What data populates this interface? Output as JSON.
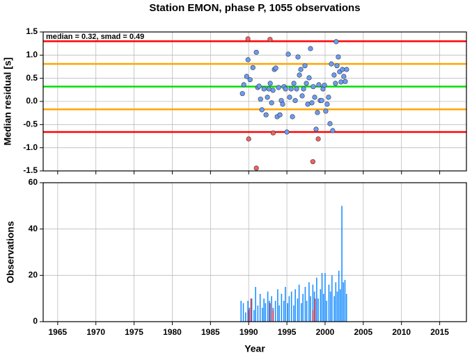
{
  "chart_data": [
    {
      "type": "scatter",
      "title": "Station EMON, phase P, 1055 observations",
      "ylabel": "Median residual [s]",
      "annotation": "median = 0.32, smad = 0.49",
      "xlim": [
        1963.1,
        2018.5
      ],
      "xticks": [
        1965,
        1970,
        1975,
        1980,
        1985,
        1990,
        1995,
        2000,
        2005,
        2010,
        2015
      ],
      "ylim": [
        -1.5,
        1.5
      ],
      "yticks": [
        -1.5,
        {
          "value": -1,
          "label": "-1.0"
        },
        -0.5,
        {
          "value": 0,
          "label": "0.0"
        },
        0.5,
        {
          "value": 1,
          "label": "1.0"
        },
        1.5
      ],
      "grid": true,
      "hlines": [
        {
          "value": 1.3,
          "color": "#ff0000"
        },
        {
          "value": 0.81,
          "color": "#ffa500"
        },
        {
          "value": 0.32,
          "color": "#00e000"
        },
        {
          "value": -0.17,
          "color": "#ffa500"
        },
        {
          "value": -0.66,
          "color": "#ff0000"
        }
      ],
      "series": [
        {
          "color": "#6a9cf5",
          "x": [
            1989.18,
            1989.36,
            1989.73,
            1989.91,
            1990.18,
            1990.55,
            1991.0,
            1991.18,
            1991.36,
            1991.55,
            1991.73,
            1992.0,
            1992.27,
            1992.45,
            1992.64,
            1992.82,
            1993.0,
            1993.18,
            1993.36,
            1993.55,
            1993.73,
            1993.91,
            1994.09,
            1994.27,
            1994.45,
            1994.64,
            1994.82,
            1995.0,
            1995.18,
            1995.36,
            1995.55,
            1995.73,
            1995.91,
            1996.09,
            1996.27,
            1996.45,
            1996.64,
            1996.82,
            1997.0,
            1997.18,
            1997.36,
            1997.55,
            1997.73,
            1997.91,
            1998.09,
            1998.27,
            1998.45,
            1998.64,
            1998.82,
            1999.0,
            1999.18,
            1999.36,
            1999.55,
            1999.73,
            1999.91,
            2000.09,
            2000.27,
            2000.45,
            2000.64,
            2000.82,
            2001.0,
            2001.18,
            2001.36,
            2001.45,
            2001.55,
            2001.73,
            2001.91,
            2002.09,
            2002.27,
            2002.45,
            2002.64,
            2002.82
          ],
          "values": [
            0.17,
            0.36,
            0.54,
            0.9,
            0.47,
            0.73,
            1.06,
            0.3,
            0.33,
            0.05,
            -0.18,
            0.27,
            -0.29,
            0.09,
            0.27,
            0.39,
            -0.03,
            0.24,
            0.69,
            0.72,
            -0.33,
            0.3,
            -0.29,
            0.02,
            -0.06,
            0.32,
            0.27,
            -0.66,
            1.02,
            0.09,
            0.27,
            -0.33,
            0.39,
            0.02,
            0.27,
            0.96,
            0.57,
            0.69,
            0.12,
            0.27,
            0.77,
            0.39,
            -0.06,
            0.51,
            1.14,
            -0.03,
            0.32,
            0.09,
            -0.6,
            -0.24,
            0.36,
            0.02,
            0.02,
            0.27,
            0.35,
            -0.21,
            -0.06,
            0.09,
            -0.48,
            0.81,
            -0.63,
            0.57,
            0.39,
            1.29,
            0.77,
            0.96,
            0.64,
            0.42,
            0.69,
            0.54,
            0.43,
            0.69
          ]
        },
        {
          "color": "#f26060",
          "x": [
            1989.9,
            1992.8,
            1990.0,
            1991.0,
            1993.2,
            1998.4,
            1999.1
          ],
          "values": [
            1.35,
            1.34,
            -0.81,
            -1.44,
            -0.68,
            -1.3,
            -0.81
          ]
        }
      ]
    },
    {
      "type": "bar",
      "ylabel": "Observations",
      "xlabel": "Year",
      "xlim": [
        1963.1,
        2018.5
      ],
      "xticks": [
        1965,
        1970,
        1975,
        1980,
        1985,
        1990,
        1995,
        2000,
        2005,
        2010,
        2015
      ],
      "ylim": [
        0,
        60
      ],
      "yticks": [
        0,
        20,
        40,
        60
      ],
      "grid": true,
      "series": [
        {
          "color": "#1e90ff",
          "x": [
            1989.0,
            1989.3,
            1989.6,
            1989.9,
            1990.1,
            1990.4,
            1990.7,
            1990.9,
            1991.2,
            1991.5,
            1991.8,
            1992.0,
            1992.2,
            1992.5,
            1992.7,
            1993.0,
            1993.2,
            1993.5,
            1993.8,
            1994.0,
            1994.3,
            1994.6,
            1994.8,
            1995.1,
            1995.3,
            1995.6,
            1995.9,
            1996.1,
            1996.4,
            1996.6,
            1996.9,
            1997.1,
            1997.4,
            1997.6,
            1997.9,
            1998.1,
            1998.4,
            1998.6,
            1998.9,
            1999.1,
            1999.4,
            1999.6,
            1999.8,
            2000.0,
            2000.2,
            2000.5,
            2000.7,
            2000.9,
            2001.2,
            2001.4,
            2001.6,
            2001.8,
            2002.0,
            2002.2,
            2002.4,
            2002.6,
            2002.8
          ],
          "values": [
            9,
            8,
            4,
            9,
            6,
            10,
            5,
            15,
            7,
            12,
            6,
            10,
            8,
            13,
            9,
            11,
            6,
            9,
            14,
            7,
            12,
            9,
            15,
            8,
            11,
            13,
            7,
            14,
            10,
            16,
            8,
            12,
            15,
            9,
            17,
            11,
            16,
            13,
            19,
            10,
            14,
            21,
            12,
            21,
            9,
            16,
            13,
            20,
            11,
            17,
            13,
            22,
            14,
            50,
            17,
            18,
            12
          ]
        },
        {
          "color": "#e0303a",
          "x": [
            1990.0,
            1990.3,
            1992.8,
            1993.2,
            1998.4,
            1998.7
          ],
          "values": [
            5,
            10,
            8,
            5,
            5,
            10
          ]
        }
      ]
    }
  ]
}
